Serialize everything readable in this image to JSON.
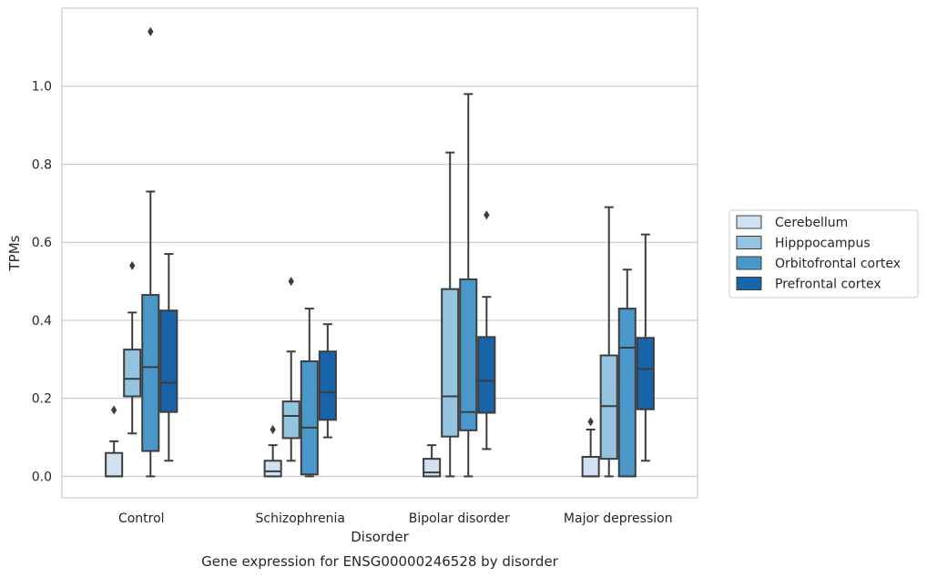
{
  "chart_data": {
    "type": "boxplot",
    "title": "Gene expression for ENSG00000246528 by disorder",
    "xlabel": "Disorder",
    "ylabel": "TPMs",
    "ylim": [
      -0.055,
      1.2
    ],
    "yticks": [
      "0.0",
      "0.2",
      "0.4",
      "0.6",
      "0.8",
      "1.0"
    ],
    "grid": "horizontal",
    "legend_position": "right",
    "categories": [
      "Control",
      "Schizophrenia",
      "Bipolar disorder",
      "Major depression"
    ],
    "series": [
      {
        "name": "Cerebellum",
        "color": "#d0e1f2",
        "boxes": [
          {
            "whislo": 0.0,
            "q1": 0.0,
            "med": 0.0,
            "q3": 0.06,
            "whishi": 0.09,
            "fliers": [
              0.17
            ]
          },
          {
            "whislo": 0.0,
            "q1": 0.0,
            "med": 0.013,
            "q3": 0.04,
            "whishi": 0.08,
            "fliers": [
              0.12
            ]
          },
          {
            "whislo": 0.0,
            "q1": 0.0,
            "med": 0.01,
            "q3": 0.045,
            "whishi": 0.08,
            "fliers": []
          },
          {
            "whislo": 0.0,
            "q1": 0.0,
            "med": 0.0,
            "q3": 0.05,
            "whishi": 0.12,
            "fliers": [
              0.14
            ]
          }
        ]
      },
      {
        "name": "Hipppocampus",
        "color": "#94c4df",
        "boxes": [
          {
            "whislo": 0.11,
            "q1": 0.205,
            "med": 0.25,
            "q3": 0.325,
            "whishi": 0.42,
            "fliers": [
              0.54
            ]
          },
          {
            "whislo": 0.04,
            "q1": 0.098,
            "med": 0.155,
            "q3": 0.192,
            "whishi": 0.32,
            "fliers": [
              0.5
            ]
          },
          {
            "whislo": 0.0,
            "q1": 0.102,
            "med": 0.205,
            "q3": 0.48,
            "whishi": 0.83,
            "fliers": []
          },
          {
            "whislo": 0.0,
            "q1": 0.045,
            "med": 0.18,
            "q3": 0.31,
            "whishi": 0.69,
            "fliers": []
          }
        ]
      },
      {
        "name": "Orbitofrontal cortex",
        "color": "#4a98c9",
        "boxes": [
          {
            "whislo": 0.0,
            "q1": 0.065,
            "med": 0.28,
            "q3": 0.465,
            "whishi": 0.73,
            "fliers": [
              1.14
            ]
          },
          {
            "whislo": 0.0,
            "q1": 0.005,
            "med": 0.125,
            "q3": 0.295,
            "whishi": 0.43,
            "fliers": []
          },
          {
            "whislo": 0.0,
            "q1": 0.118,
            "med": 0.165,
            "q3": 0.505,
            "whishi": 0.98,
            "fliers": []
          },
          {
            "whislo": 0.0,
            "q1": 0.0,
            "med": 0.33,
            "q3": 0.43,
            "whishi": 0.53,
            "fliers": []
          }
        ]
      },
      {
        "name": "Prefrontal cortex",
        "color": "#1764ab",
        "boxes": [
          {
            "whislo": 0.04,
            "q1": 0.165,
            "med": 0.24,
            "q3": 0.425,
            "whishi": 0.57,
            "fliers": []
          },
          {
            "whislo": 0.1,
            "q1": 0.145,
            "med": 0.215,
            "q3": 0.32,
            "whishi": 0.39,
            "fliers": []
          },
          {
            "whislo": 0.07,
            "q1": 0.163,
            "med": 0.245,
            "q3": 0.357,
            "whishi": 0.46,
            "fliers": [
              0.67
            ]
          },
          {
            "whislo": 0.04,
            "q1": 0.172,
            "med": 0.275,
            "q3": 0.355,
            "whishi": 0.62,
            "fliers": []
          }
        ]
      }
    ]
  }
}
